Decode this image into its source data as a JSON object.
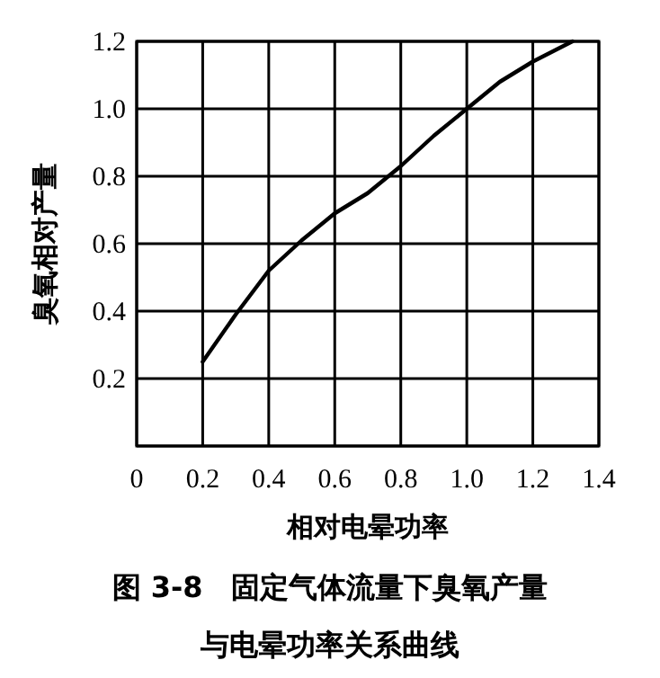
{
  "chart_data": {
    "type": "line",
    "xlabel": "相对电晕功率",
    "ylabel": "臭氧相对产量",
    "annotations": [
      "图 3-8　固定气体流量下臭氧产量",
      "与电晕功率关系曲线"
    ],
    "series": [
      {
        "color": "#000000",
        "x": [
          0.2,
          0.3,
          0.4,
          0.5,
          0.6,
          0.7,
          0.8,
          0.9,
          1.0,
          1.1,
          1.2,
          1.32
        ],
        "values": [
          0.25,
          0.39,
          0.52,
          0.61,
          0.69,
          0.75,
          0.83,
          0.92,
          1.0,
          1.08,
          1.14,
          1.2
        ]
      }
    ],
    "xlim": [
      0,
      1.4
    ],
    "ylim": [
      0,
      1.2
    ],
    "xticks": [
      0,
      0.2,
      0.4,
      0.6,
      0.8,
      {
        "value": 1,
        "label": "1.0"
      },
      1.2,
      1.4
    ],
    "yticks": [
      {
        "value": 0,
        "label": null
      },
      0.2,
      0.4,
      0.6,
      0.8,
      {
        "value": 1,
        "label": "1.0"
      },
      1.2
    ],
    "grid": true,
    "marker": "none",
    "line_style": "solid"
  }
}
